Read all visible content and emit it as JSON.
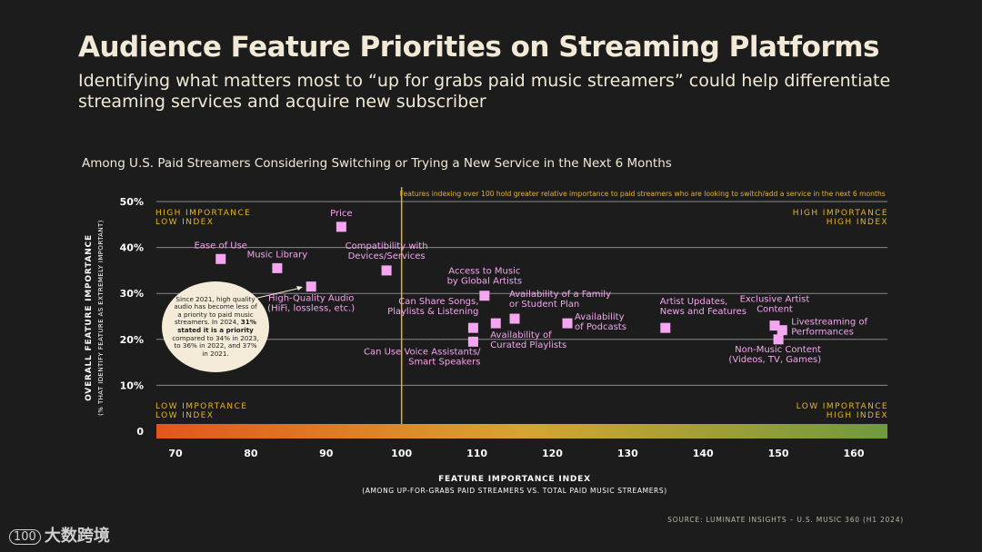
{
  "header": {
    "title": "Audience Feature Priorities on Streaming Platforms",
    "subtitle": "Identifying what matters most to “up for grabs paid music streamers” could help differentiate streaming services and acquire new subscriber",
    "context": "Among U.S. Paid Streamers Considering Switching or Trying a New Service in the Next 6 Months"
  },
  "callout": {
    "part1": "Since 2021, high quality audio has become less of a priority to paid music streamers. In 2024, ",
    "bold": "31% stated it is a priority",
    "part2": " compared to 34% in 2023, to 36% in 2022, and 37% in 2021."
  },
  "footer": {
    "source": "SOURCE: LUMINATE INSIGHTS – U.S. MUSIC 360 (H1 2024)",
    "logo_mark": "100",
    "logo_text": "大数跨境"
  },
  "colors": {
    "point": "#f5a6f0",
    "threshold": "#e6b422",
    "grid": "#8a8a8a",
    "label": "#f5a6f0",
    "quadrant": "#e6b422",
    "axis_text": "#ffffff",
    "gradient_start": "#e2561d",
    "gradient_mid": "#d8a430",
    "gradient_end": "#6f9a3e"
  },
  "chart_data": {
    "type": "scatter",
    "xlabel": "FEATURE IMPORTANCE INDEX",
    "xlabel_sub": "(AMONG UP-FOR-GRABS PAID STREAMERS VS. TOTAL PAID MUSIC STREAMERS)",
    "ylabel": "OVERALL FEATURE IMPORTANCE",
    "ylabel_sub": "(% THAT IDENTIFY FEATURE AS EXTREMELY IMPORTANT)",
    "xlim": [
      67,
      165
    ],
    "ylim": [
      0,
      50
    ],
    "x_ticks": [
      70,
      80,
      90,
      100,
      110,
      120,
      130,
      140,
      150,
      160
    ],
    "x_tick_labels": [
      "70",
      "80",
      "90",
      "100",
      "110",
      "120",
      "130",
      "140",
      "150",
      "160"
    ],
    "y_ticks": [
      0,
      10,
      20,
      30,
      40,
      50
    ],
    "y_tick_labels": [
      "0",
      "10%",
      "20%",
      "30%",
      "40%",
      "50%"
    ],
    "grid": true,
    "threshold_x": 100,
    "threshold_note": "Features indexing over 100 hold greater relative importance to paid streamers who are looking to switch/add a service in the next 6 months",
    "quadrants": {
      "top_left": [
        "HIGH IMPORTANCE",
        "LOW INDEX"
      ],
      "top_right": [
        "HIGH IMPORTANCE",
        "HIGH INDEX"
      ],
      "bottom_left": [
        "LOW IMPORTANCE",
        "LOW INDEX"
      ],
      "bottom_right": [
        "LOW IMPORTANCE",
        "HIGH INDEX"
      ]
    },
    "points": [
      {
        "label": [
          "Price"
        ],
        "x": 92,
        "y": 44.5,
        "anchor": "middle",
        "dx": 0,
        "dy": -12
      },
      {
        "label": [
          "Ease of Use"
        ],
        "x": 76,
        "y": 37.5,
        "anchor": "middle",
        "dx": 0,
        "dy": -12
      },
      {
        "label": [
          "Music Library"
        ],
        "x": 83.5,
        "y": 35.5,
        "anchor": "middle",
        "dx": 0,
        "dy": -12
      },
      {
        "label": [
          "Compatibility with",
          "Devices/Services"
        ],
        "x": 98,
        "y": 35,
        "anchor": "middle",
        "dx": 0,
        "dy": -24
      },
      {
        "label": [
          "High-Quality Audio",
          "(HiFi, lossless, etc.)"
        ],
        "x": 88,
        "y": 31.5,
        "anchor": "middle",
        "dx": 0,
        "dy": 16
      },
      {
        "label": [
          "Access to Music",
          "by Global Artists"
        ],
        "x": 111,
        "y": 29.5,
        "anchor": "middle",
        "dx": 0,
        "dy": -24
      },
      {
        "label": [
          "Availability of a Family",
          "or Student Plan"
        ],
        "x": 115,
        "y": 24.5,
        "anchor": "start",
        "dx": -6,
        "dy": -24
      },
      {
        "label": [
          "Can Share Songs,",
          "Playlists & Listening"
        ],
        "x": 109.5,
        "y": 22.5,
        "anchor": "end",
        "dx": 6,
        "dy": -26
      },
      {
        "label": [
          "Availability of",
          "Curated Playlists"
        ],
        "x": 112.5,
        "y": 23.5,
        "anchor": "start",
        "dx": -6,
        "dy": 16
      },
      {
        "label": [
          "Availability",
          "of Podcasts"
        ],
        "x": 122,
        "y": 23.5,
        "anchor": "start",
        "dx": 8,
        "dy": -4
      },
      {
        "label": [
          "Can Use Voice Assistants/",
          "Smart Speakers"
        ],
        "x": 109.5,
        "y": 19.5,
        "anchor": "end",
        "dx": 8,
        "dy": 14
      },
      {
        "label": [
          "Artist Updates,",
          "News and Features"
        ],
        "x": 135,
        "y": 22.5,
        "anchor": "start",
        "dx": -6,
        "dy": -26
      },
      {
        "label": [
          "Exclusive Artist",
          "Content"
        ],
        "x": 149.5,
        "y": 23,
        "anchor": "middle",
        "dx": 0,
        "dy": -26
      },
      {
        "label": [
          "Livestreaming of",
          "Performances"
        ],
        "x": 150.5,
        "y": 22,
        "anchor": "start",
        "dx": 10,
        "dy": -6
      },
      {
        "label": [
          "Non-Music Content",
          "(Videos, TV, Games)"
        ],
        "x": 150,
        "y": 20,
        "anchor": "end",
        "dx": 47,
        "dy": 14
      }
    ]
  }
}
